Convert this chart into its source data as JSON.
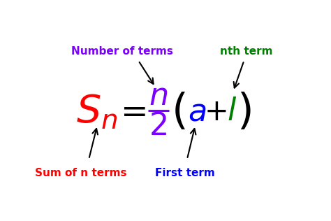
{
  "bg_color": "#ffffff",
  "color_red": "#FF0000",
  "color_blue": "#0000FF",
  "color_purple": "#7B00FF",
  "color_green": "#008000",
  "color_black": "#000000",
  "label_number_of_terms": "Number of terms",
  "label_nth_term": "nth term",
  "label_sum": "Sum of n terms",
  "label_first": "First term"
}
